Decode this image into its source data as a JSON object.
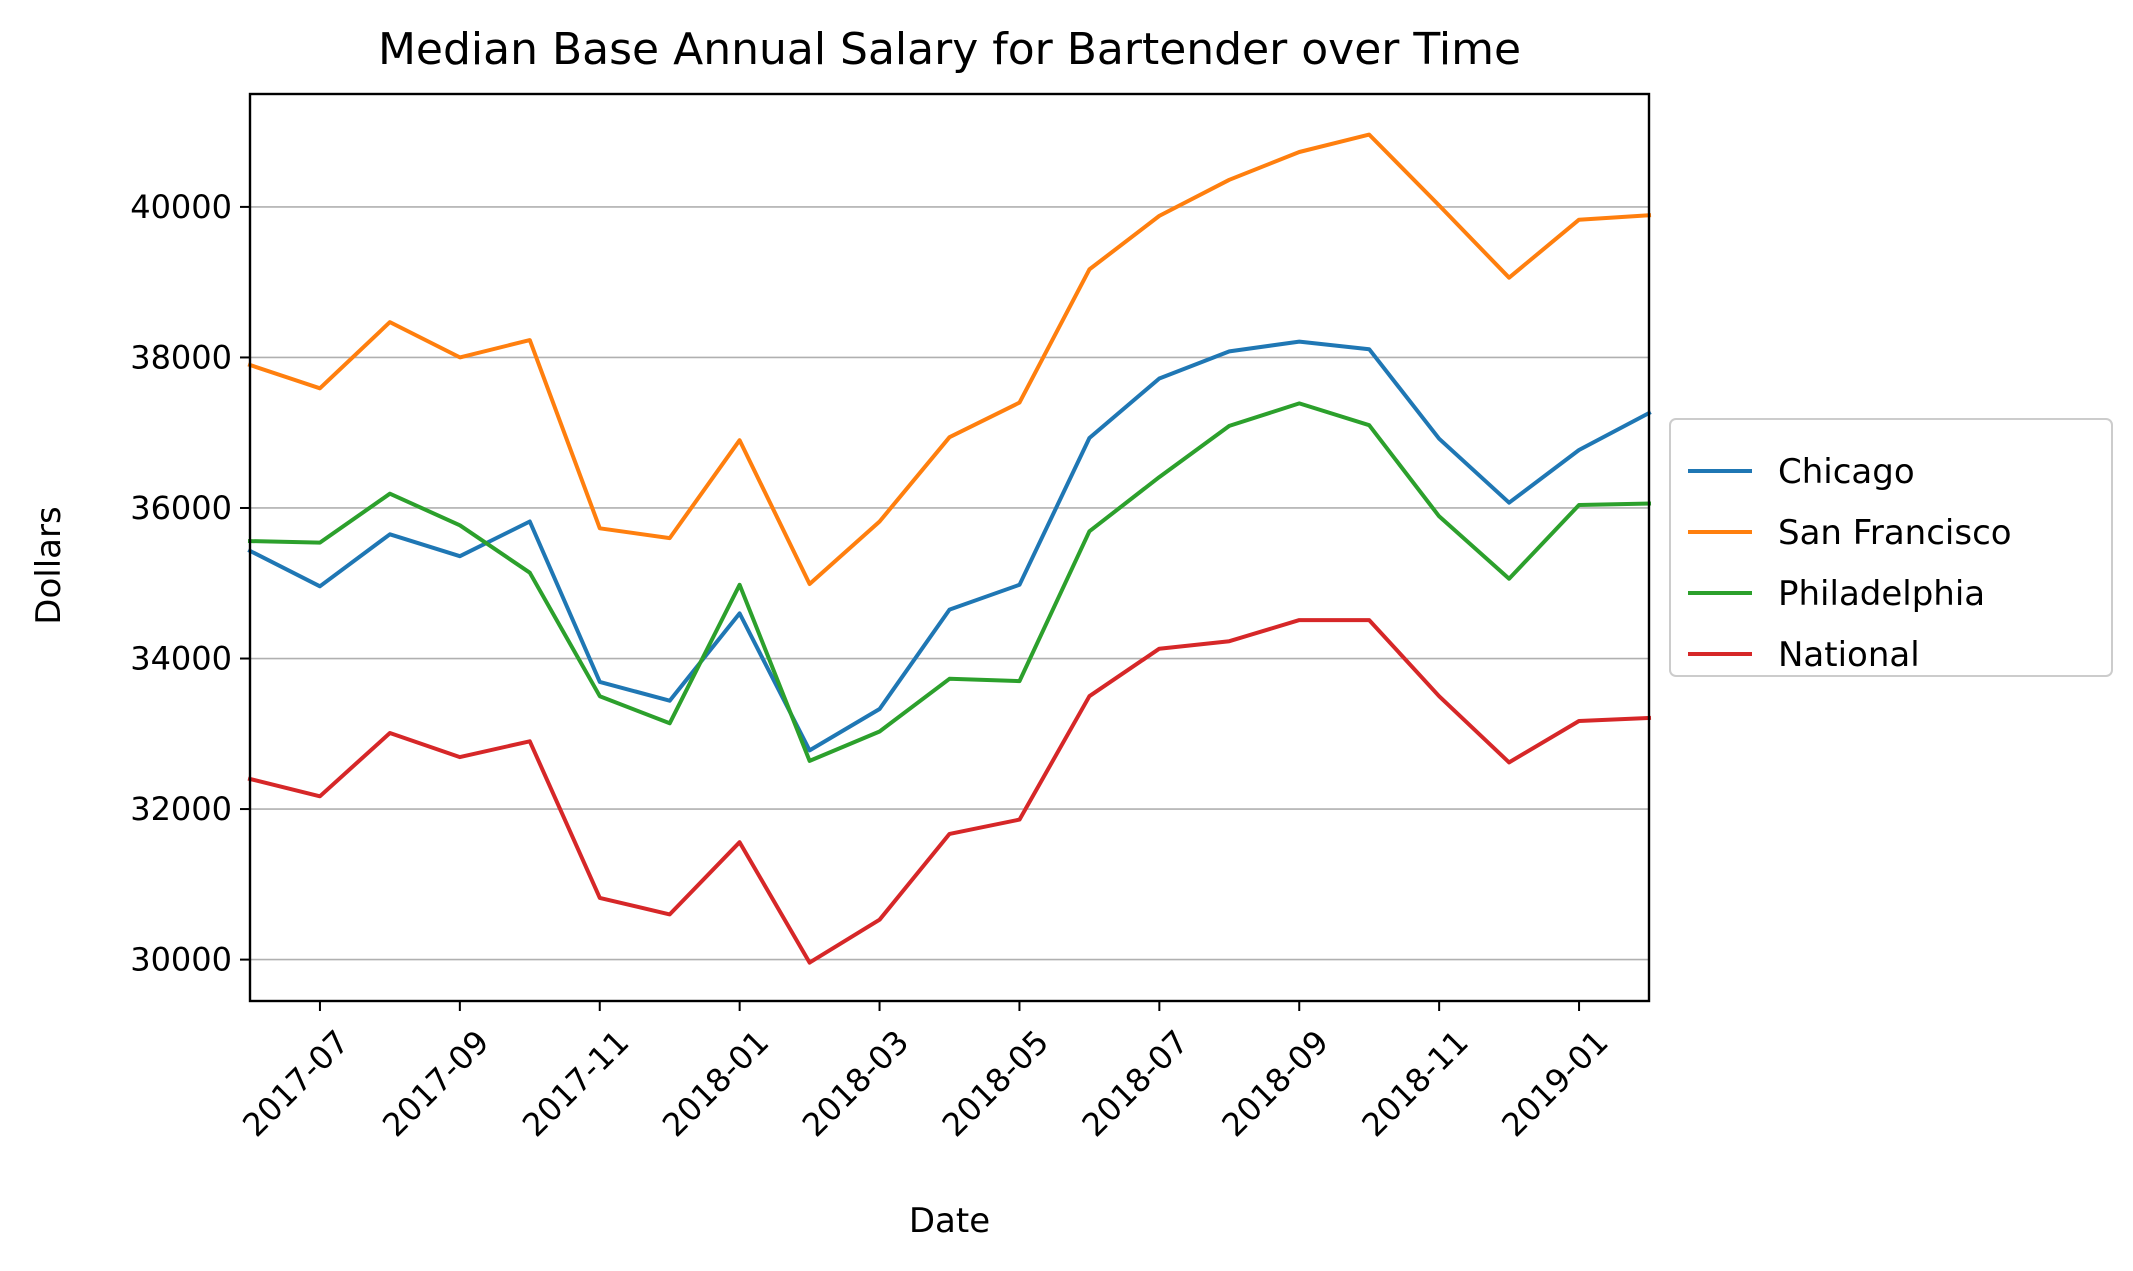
{
  "chart_data": {
    "type": "line",
    "title": "Median Base Annual Salary for Bartender over Time",
    "xlabel": "Date",
    "ylabel": "Dollars",
    "x": [
      "2017-06",
      "2017-07",
      "2017-08",
      "2017-09",
      "2017-10",
      "2017-11",
      "2017-12",
      "2018-01",
      "2018-02",
      "2018-03",
      "2018-04",
      "2018-05",
      "2018-06",
      "2018-07",
      "2018-08",
      "2018-09",
      "2018-10",
      "2018-11",
      "2018-12",
      "2019-01",
      "2019-02"
    ],
    "xlim": [
      "2017-06",
      "2019-02"
    ],
    "xticks": [
      "2017-07",
      "2017-09",
      "2017-11",
      "2018-01",
      "2018-03",
      "2018-05",
      "2018-07",
      "2018-09",
      "2018-11",
      "2019-01"
    ],
    "ylim": [
      29450,
      41500
    ],
    "yticks": [
      30000,
      32000,
      34000,
      36000,
      38000,
      40000
    ],
    "grid": "y",
    "legend_position": "right, outside plot",
    "series": [
      {
        "name": "Chicago",
        "color": "#1f77b4",
        "values": [
          35430,
          34960,
          35650,
          35360,
          35820,
          33690,
          33440,
          34600,
          32780,
          33330,
          34650,
          34980,
          36930,
          37720,
          38080,
          38210,
          38110,
          36920,
          36070,
          36770,
          37260
        ]
      },
      {
        "name": "San Francisco",
        "color": "#ff7f0e",
        "values": [
          37900,
          37590,
          38470,
          38000,
          38230,
          35730,
          35600,
          36900,
          34990,
          35820,
          36940,
          37400,
          39170,
          39880,
          40360,
          40730,
          40960,
          40020,
          39060,
          39830,
          39890
        ]
      },
      {
        "name": "Philadelphia",
        "color": "#2ca02c",
        "values": [
          35560,
          35540,
          36190,
          35770,
          35140,
          33500,
          33140,
          34980,
          32640,
          33030,
          33730,
          33700,
          35690,
          36410,
          37090,
          37390,
          37100,
          35890,
          35060,
          36040,
          36060
        ]
      },
      {
        "name": "National",
        "color": "#d62728",
        "values": [
          32400,
          32170,
          33010,
          32690,
          32900,
          30820,
          30600,
          31560,
          29960,
          30530,
          31670,
          31860,
          33500,
          34130,
          34230,
          34510,
          34510,
          33500,
          32620,
          33170,
          33210
        ]
      }
    ]
  }
}
